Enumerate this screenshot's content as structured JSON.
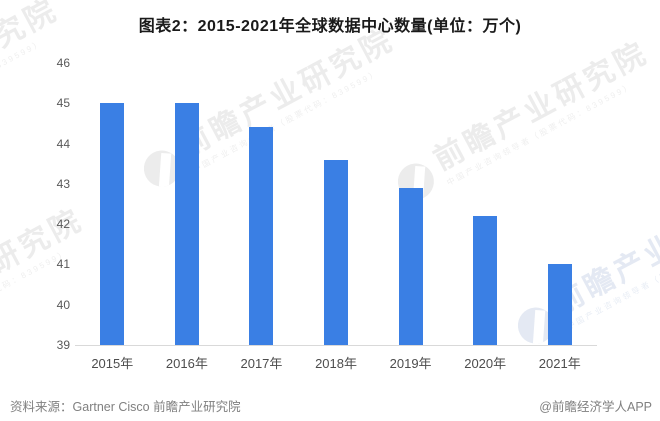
{
  "title": "图表2：2015-2021年全球数据中心数量(单位：万个)",
  "chart_data": {
    "type": "bar",
    "title": "图表2：2015-2021年全球数据中心数量(单位：万个)",
    "categories": [
      "2015年",
      "2016年",
      "2017年",
      "2018年",
      "2019年",
      "2020年",
      "2021年"
    ],
    "values": [
      45,
      45,
      44.4,
      43.6,
      42.9,
      42.2,
      41
    ],
    "xlabel": "",
    "ylabel": "",
    "ylim": [
      39,
      46
    ],
    "yticks": [
      39,
      40,
      41,
      42,
      43,
      44,
      45,
      46
    ],
    "bar_color": "#3a7fe4",
    "grid": false,
    "legend": "none",
    "unit": "万个"
  },
  "footer": {
    "source_label": "资料来源：",
    "source_text": "Gartner Cisco 前瞻产业研究院",
    "credit": "@前瞻经济学人APP"
  },
  "watermark": {
    "text": "前瞻产业研究院",
    "subtext": "中国产业咨询领导者（股票代码：839599）",
    "logo_icon": "qianzhan-logo"
  },
  "colors": {
    "bar": "#3a7fe4",
    "axis_label": "#595959",
    "x_label": "#4d4d4d",
    "footer_text": "#808080",
    "baseline": "#d9d9d9",
    "watermark": "#ececec",
    "background": "#ffffff"
  }
}
